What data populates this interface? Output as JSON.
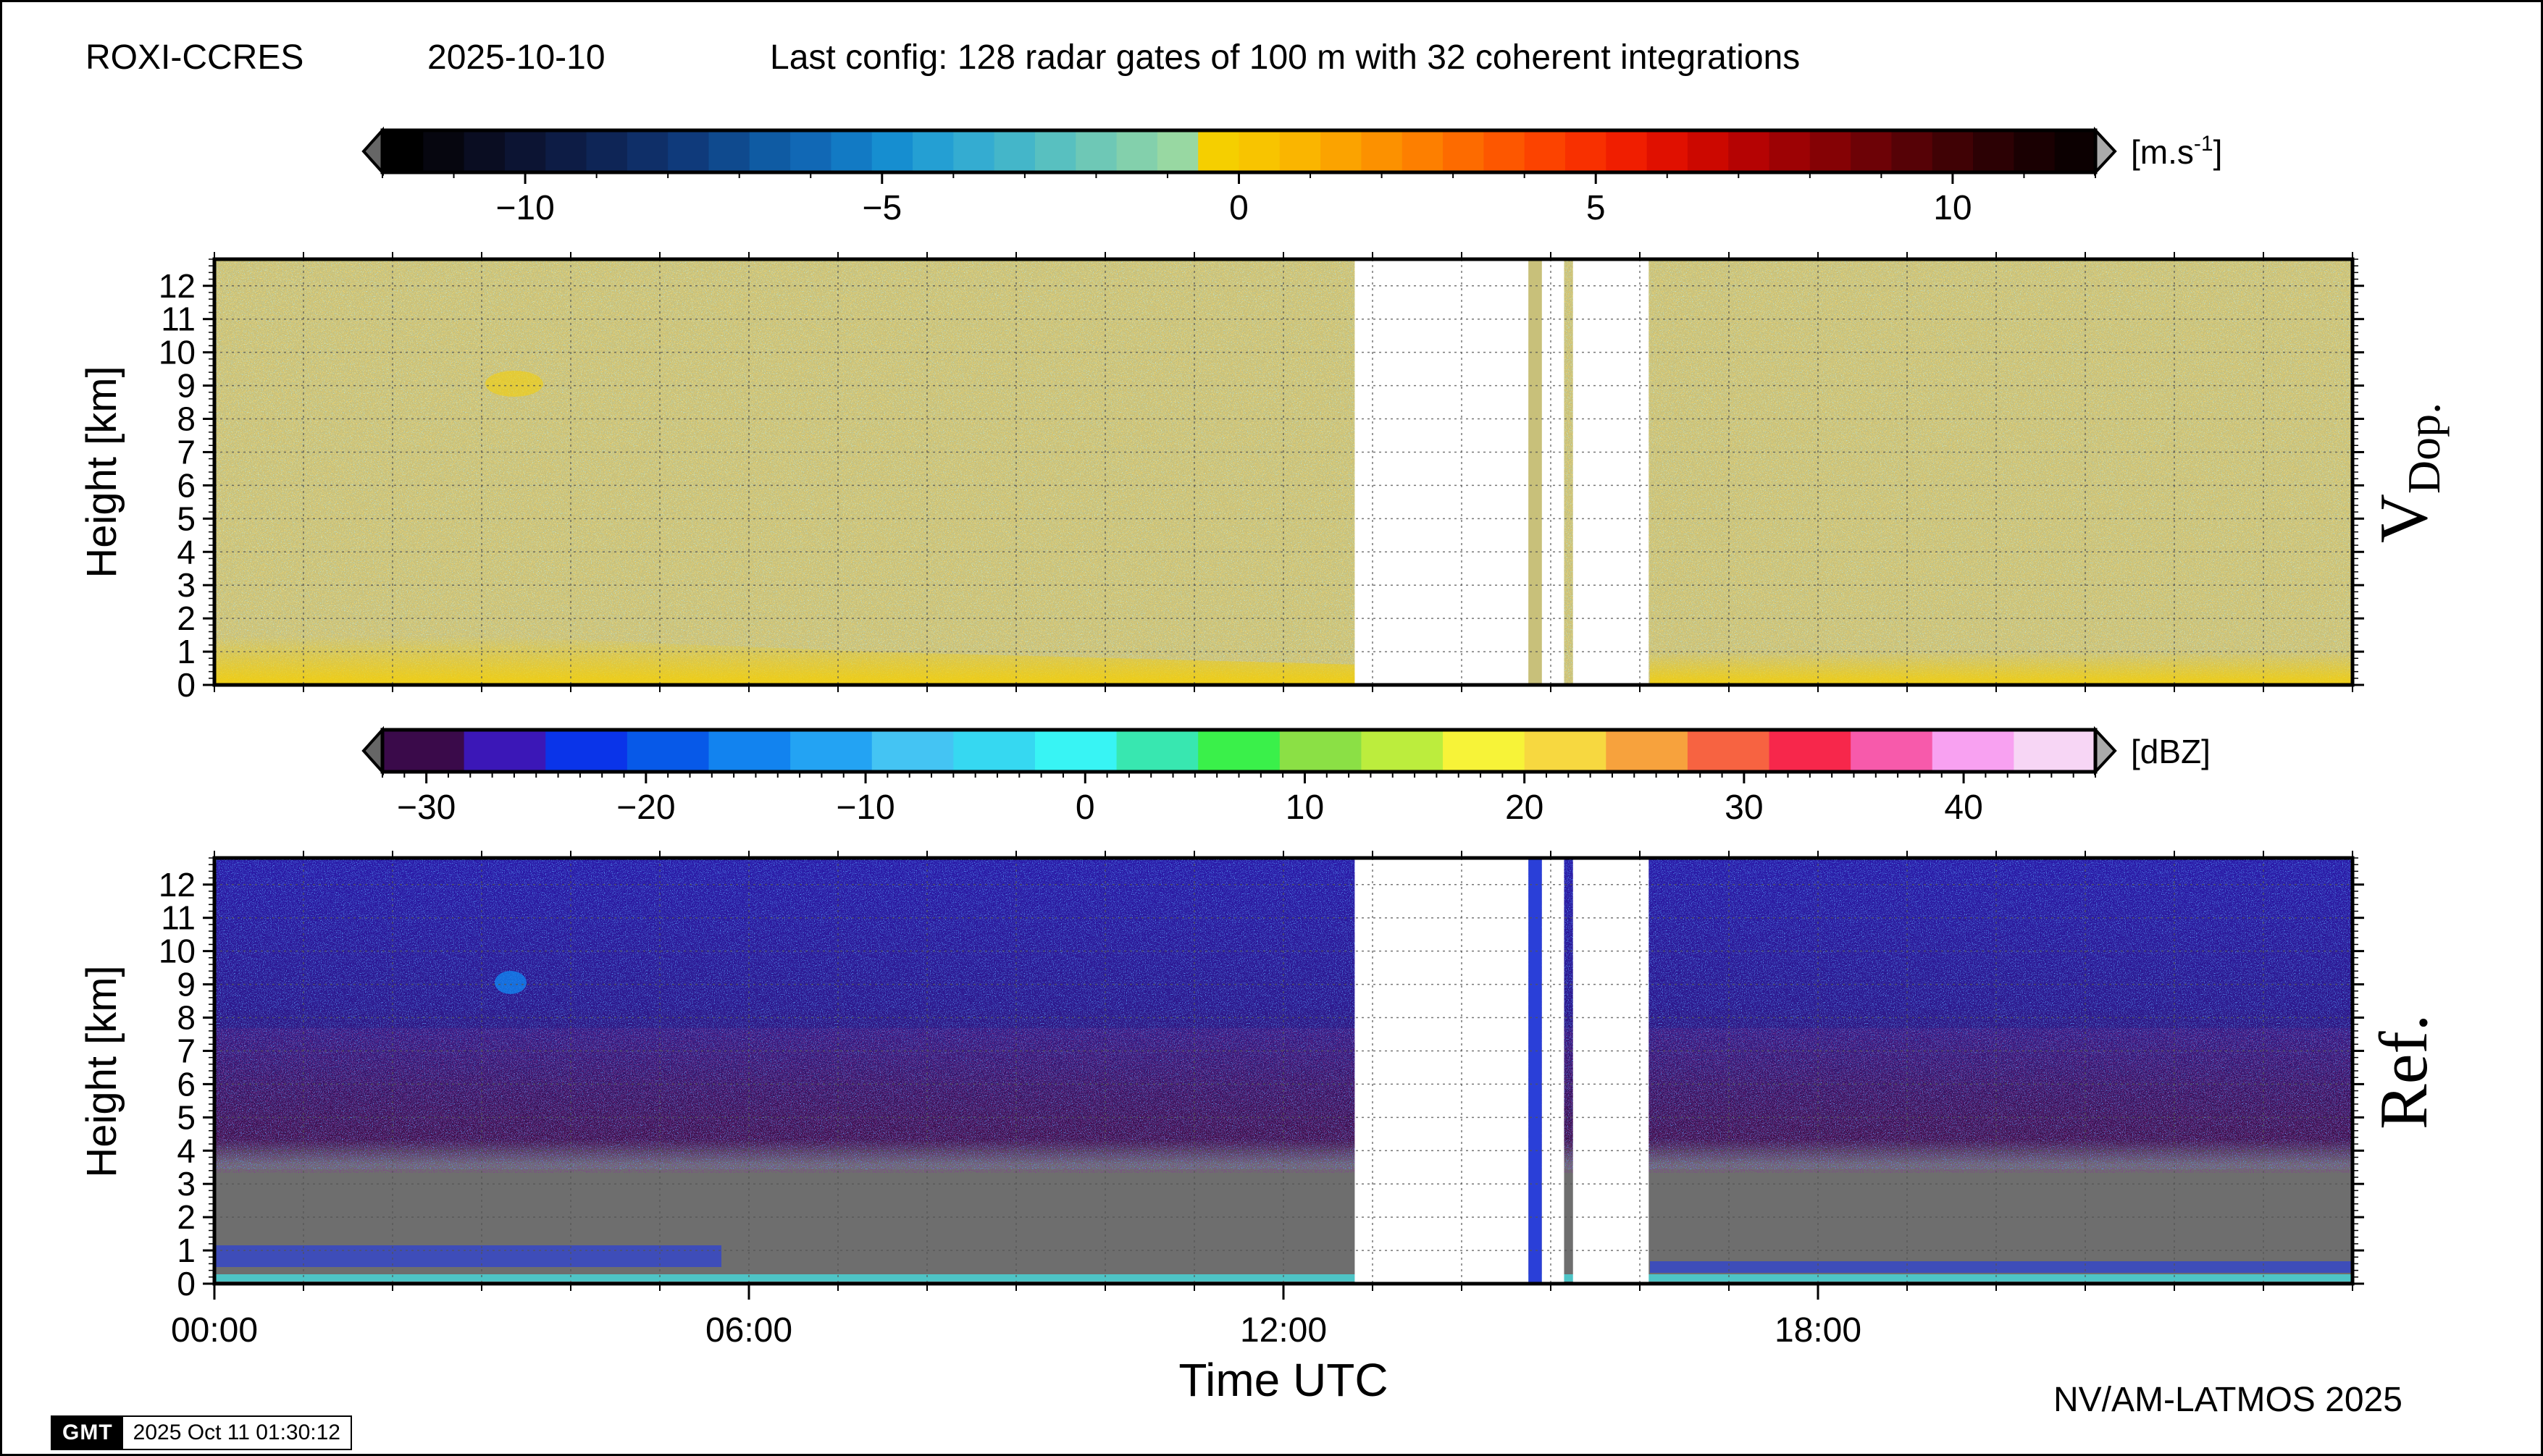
{
  "header": {
    "station": "ROXI-CCRES",
    "date": "2025-10-10",
    "config": "Last config: 128 radar gates of 100 m with 32 coherent integrations"
  },
  "footer": {
    "credit": "NV/AM-LATMOS 2025",
    "gmt_logo": "GMT",
    "timestamp": "2025 Oct 11 01:30:12"
  },
  "colors": {
    "vdop_scale": [
      "#000000",
      "#06060f",
      "#0a0d22",
      "#0c1433",
      "#0d1c45",
      "#0e2556",
      "#0f2f68",
      "#0f3a7b",
      "#0f4a8e",
      "#0f5ba3",
      "#1168b5",
      "#127ac4",
      "#168ed0",
      "#249fd3",
      "#34acd1",
      "#44b6c9",
      "#58c0c0",
      "#6ec8b6",
      "#83d0ac",
      "#98d8a2",
      "#f5cf00",
      "#f8c400",
      "#fab500",
      "#fba300",
      "#fc9100",
      "#fd7f00",
      "#fd6b00",
      "#fd5700",
      "#fc4300",
      "#f83000",
      "#f01e00",
      "#e01000",
      "#cc0800",
      "#b50303",
      "#9d0204",
      "#850205",
      "#6d0206",
      "#560206",
      "#400205",
      "#2c0104",
      "#1a0002",
      "#0c0001"
    ],
    "dbz_scale": [
      "#3a0a4a",
      "#3b17b7",
      "#0a34e9",
      "#0759e8",
      "#1283ef",
      "#23a3f3",
      "#44c4f3",
      "#36d8f1",
      "#38f4f4",
      "#38e7b0",
      "#3af04a",
      "#8be045",
      "#bced3d",
      "#f7f338",
      "#f7d840",
      "#f7a23d",
      "#f76341",
      "#f7274b",
      "#f75aab",
      "#f8a1f1",
      "#f7d6f5"
    ],
    "no_data": "#6e6e6e",
    "ground": "#4ec4c6"
  },
  "chart_data": [
    {
      "name_label": "V_Dop.",
      "label_main": "V",
      "label_sub": "Dop.",
      "type": "heatmap",
      "ylabel": "Height [km]",
      "y_ticks": [
        0,
        1,
        2,
        3,
        4,
        5,
        6,
        7,
        8,
        9,
        10,
        11,
        12
      ],
      "ylim": [
        0,
        12.8
      ],
      "xlim_hours": [
        0,
        24
      ],
      "colorbar": {
        "unit_base": "[m.s",
        "unit_sup": "-1",
        "unit_end": "]",
        "range": [
          -12,
          12
        ],
        "tick_values": [
          -10,
          -5,
          0,
          5,
          10
        ],
        "tick_labels": [
          "−10",
          "−5",
          "0",
          "5",
          "10"
        ]
      },
      "data_gaps_hours": [
        [
          12.8,
          14.75
        ],
        [
          14.9,
          15.15
        ],
        [
          15.25,
          16.1
        ]
      ],
      "features": [
        {
          "description": "boundary layer positive velocity",
          "height_km": [
            0,
            1
          ],
          "value_ms": 1.5
        },
        {
          "description": "background noise",
          "value_ms": 0
        }
      ]
    },
    {
      "name_label": "Ref.",
      "type": "heatmap",
      "ylabel": "Height [km]",
      "xlabel": "Time UTC",
      "y_ticks": [
        0,
        1,
        2,
        3,
        4,
        5,
        6,
        7,
        8,
        9,
        10,
        11,
        12
      ],
      "ylim": [
        0,
        12.8
      ],
      "x_ticks": [
        "00:00",
        "06:00",
        "12:00",
        "18:00"
      ],
      "x_tick_hours": [
        0,
        6,
        12,
        18
      ],
      "xlim_hours": [
        0,
        24
      ],
      "colorbar": {
        "unit": "[dBZ]",
        "range": [
          -32,
          46
        ],
        "tick_values": [
          -30,
          -20,
          -10,
          0,
          10,
          20,
          30,
          40
        ],
        "tick_labels": [
          "−30",
          "−20",
          "−10",
          "0",
          "10",
          "20",
          "30",
          "40"
        ]
      },
      "data_gaps_hours": [
        [
          12.8,
          14.75
        ],
        [
          14.9,
          15.15
        ],
        [
          15.25,
          16.1
        ]
      ],
      "features": [
        {
          "description": "no-data region",
          "height_km": [
            0.5,
            3.5
          ]
        },
        {
          "description": "noise floor",
          "height_km": [
            3.5,
            12.8
          ],
          "value_dbz": -25
        }
      ]
    }
  ]
}
